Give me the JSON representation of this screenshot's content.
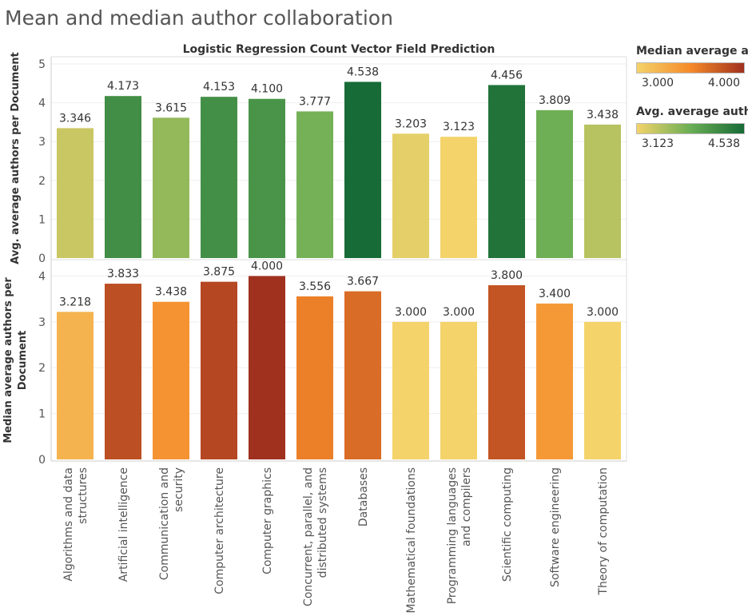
{
  "title": "Mean and median author collaboration",
  "subtitle": "Logistic Regression Count Vector Field Prediction",
  "legends": {
    "median": {
      "title": "Median average a..",
      "min_label": "3.000",
      "max_label": "4.000",
      "colors": [
        "#f4d36a",
        "#f58a2a",
        "#a0311f"
      ]
    },
    "avg": {
      "title": "Avg. average auth..",
      "min_label": "3.123",
      "max_label": "4.538",
      "colors": [
        "#f4d36a",
        "#6aae55",
        "#176b36"
      ]
    }
  },
  "chart_data": [
    {
      "type": "bar",
      "ylabel": "Avg. average authors per Document",
      "ylim": [
        0,
        5
      ],
      "ticks": [
        "0",
        "1",
        "2",
        "3",
        "4",
        "5"
      ],
      "categories": [
        "Algorithms and data structures",
        "Artificial intelligence",
        "Communication and security",
        "Computer architecture",
        "Computer graphics",
        "Concurrent, parallel, and distributed systems",
        "Databases",
        "Mathematical foundations",
        "Programming languages and compilers",
        "Scientific computing",
        "Software engineering",
        "Theory of computation"
      ],
      "values": [
        3.346,
        4.173,
        3.615,
        4.153,
        4.1,
        3.777,
        4.538,
        3.203,
        3.123,
        4.456,
        3.809,
        3.438
      ],
      "labels": [
        "3.346",
        "4.173",
        "3.615",
        "4.153",
        "4.100",
        "3.777",
        "4.538",
        "3.203",
        "3.123",
        "4.456",
        "3.809",
        "3.438"
      ],
      "color_domain": [
        3.123,
        4.538
      ],
      "colors": [
        "#f4d36a",
        "#6aae55",
        "#176b36"
      ],
      "grid": true
    },
    {
      "type": "bar",
      "ylabel": "Median average authors per Document",
      "ylim": [
        0,
        4.2
      ],
      "ticks": [
        "0",
        "1",
        "2",
        "3",
        "4"
      ],
      "categories": [
        "Algorithms and data structures",
        "Artificial intelligence",
        "Communication and security",
        "Computer architecture",
        "Computer graphics",
        "Concurrent, parallel, and distributed systems",
        "Databases",
        "Mathematical foundations",
        "Programming languages and compilers",
        "Scientific computing",
        "Software engineering",
        "Theory of computation"
      ],
      "values": [
        3.218,
        3.833,
        3.438,
        3.875,
        4.0,
        3.556,
        3.667,
        3.0,
        3.0,
        3.8,
        3.4,
        3.0
      ],
      "labels": [
        "3.218",
        "3.833",
        "3.438",
        "3.875",
        "4.000",
        "3.556",
        "3.667",
        "3.000",
        "3.000",
        "3.800",
        "3.400",
        "3.000"
      ],
      "color_domain": [
        3.0,
        4.0
      ],
      "colors": [
        "#f4d36a",
        "#f58a2a",
        "#a0311f"
      ],
      "grid": true
    }
  ],
  "x_labels": [
    [
      "Algorithms and data",
      "structures"
    ],
    [
      "Artificial intelligence"
    ],
    [
      "Communication and",
      "security"
    ],
    [
      "Computer architecture"
    ],
    [
      "Computer graphics"
    ],
    [
      "Concurrent, parallel, and",
      "distributed systems"
    ],
    [
      "Databases"
    ],
    [
      "Mathematical foundations"
    ],
    [
      "Programming languages",
      "and compilers"
    ],
    [
      "Scientific computing"
    ],
    [
      "Software engineering"
    ],
    [
      "Theory of computation"
    ]
  ],
  "ylabel_lines": [
    [
      "Avg. average authors per Document"
    ],
    [
      "Median average authors per",
      "Document"
    ]
  ]
}
